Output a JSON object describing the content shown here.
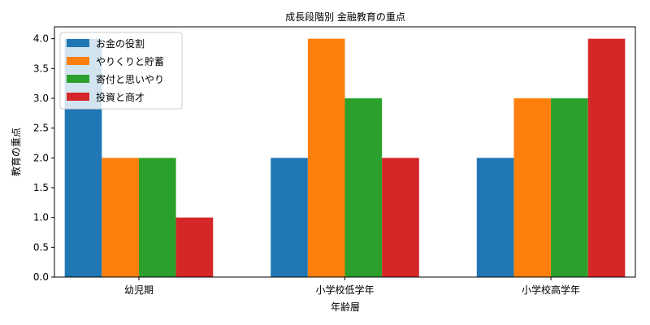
{
  "chart_data": {
    "type": "bar",
    "title": "成長段階別 金融教育の重点",
    "xlabel": "年齢層",
    "ylabel": "教育の重点",
    "categories": [
      "幼児期",
      "小学校低学年",
      "小学校高学年"
    ],
    "series": [
      {
        "name": "お金の役割",
        "values": [
          4,
          2,
          2
        ],
        "color": "#1f77b4"
      },
      {
        "name": "やりくりと貯蓄",
        "values": [
          2,
          4,
          3
        ],
        "color": "#ff7f0e"
      },
      {
        "name": "寄付と思いやり",
        "values": [
          2,
          3,
          3
        ],
        "color": "#2ca02c"
      },
      {
        "name": "投資と商才",
        "values": [
          1,
          2,
          4
        ],
        "color": "#d62728"
      }
    ],
    "ylim": [
      0,
      4.2
    ],
    "yticks": [
      "0.0",
      "0.5",
      "1.0",
      "1.5",
      "2.0",
      "2.5",
      "3.0",
      "3.5",
      "4.0"
    ],
    "grid": false,
    "legend_position": "top-left"
  }
}
